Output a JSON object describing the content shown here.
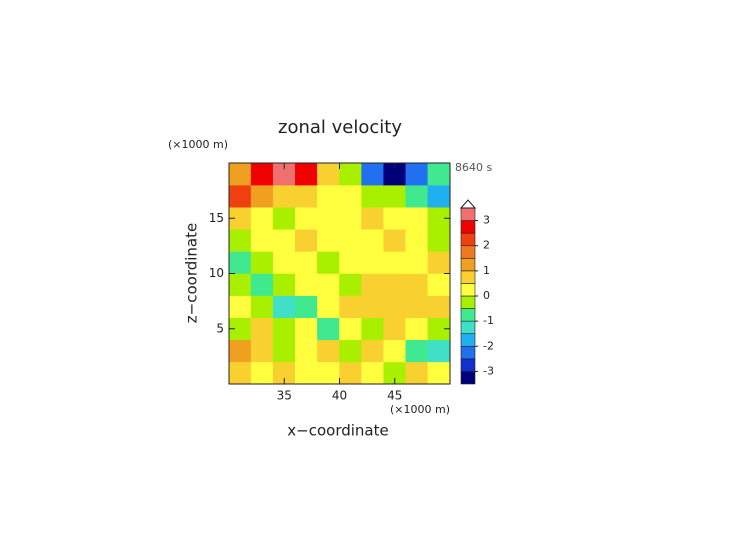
{
  "chart_data": {
    "type": "contour",
    "title": "zonal velocity",
    "time_label": "8640 s",
    "xlabel": "x−coordinate",
    "ylabel": "z−coordinate",
    "x_unit": "(×1000 m)",
    "y_unit": "(×1000 m)",
    "xlim": [
      30,
      50
    ],
    "ylim": [
      0,
      20
    ],
    "xticks": [
      35,
      40,
      45
    ],
    "yticks": [
      5,
      10,
      15
    ],
    "x": [
      31,
      33,
      35,
      37,
      39,
      41,
      43,
      45,
      47,
      49
    ],
    "y": [
      1,
      3,
      5,
      7,
      9,
      11,
      13,
      15,
      17,
      19
    ],
    "z": [
      [
        0.5,
        0.2,
        0.8,
        0.3,
        0.2,
        0.5,
        0.2,
        -0.3,
        0.5,
        0.3
      ],
      [
        1,
        0.7,
        -0.5,
        0.3,
        0.5,
        -0.3,
        0.7,
        0.3,
        -1,
        -1.2
      ],
      [
        -0.3,
        0.5,
        -0.3,
        0.2,
        -0.7,
        0.3,
        -0.3,
        0.5,
        0.3,
        -0.5
      ],
      [
        0.3,
        -0.5,
        -1.5,
        -0.7,
        0.2,
        0.5,
        0.7,
        0.5,
        0.8,
        0.5
      ],
      [
        -0.5,
        -1,
        -0.5,
        0.2,
        0.3,
        -0.3,
        0.5,
        0.8,
        0.5,
        0.3
      ],
      [
        -1,
        -0.2,
        0.3,
        0.2,
        -0.2,
        0.3,
        0.2,
        0.4,
        0.2,
        0.5
      ],
      [
        -0.3,
        0.2,
        0.3,
        0.5,
        0.2,
        0.1,
        0.3,
        0.5,
        0.3,
        -0.3
      ],
      [
        0.5,
        0.3,
        -0.3,
        0.3,
        0.2,
        0.2,
        0.5,
        0,
        0.3,
        -0.5
      ],
      [
        2,
        1,
        0.5,
        0.5,
        0.2,
        0,
        -0.3,
        -0.5,
        -1,
        -2
      ],
      [
        1,
        2.5,
        3.2,
        2.5,
        0.5,
        -0.5,
        -2.5,
        -3.2,
        -2.5,
        -1
      ]
    ],
    "levels": [
      -3.5,
      -3,
      -2.5,
      -2,
      -1.5,
      -1,
      -0.5,
      0,
      0.5,
      1,
      1.5,
      2,
      2.5,
      3,
      3.5
    ],
    "colors": [
      "#00007a",
      "#1030d0",
      "#2070f0",
      "#20b0f0",
      "#40e0c8",
      "#40e890",
      "#a8f000",
      "#ffff40",
      "#f8d030",
      "#f0a020",
      "#f07820",
      "#f04010",
      "#f00000",
      "#f07070",
      "#f8b0b0"
    ],
    "colorbar_ticks": [
      -3,
      -2,
      -1,
      0,
      1,
      2,
      3
    ]
  }
}
